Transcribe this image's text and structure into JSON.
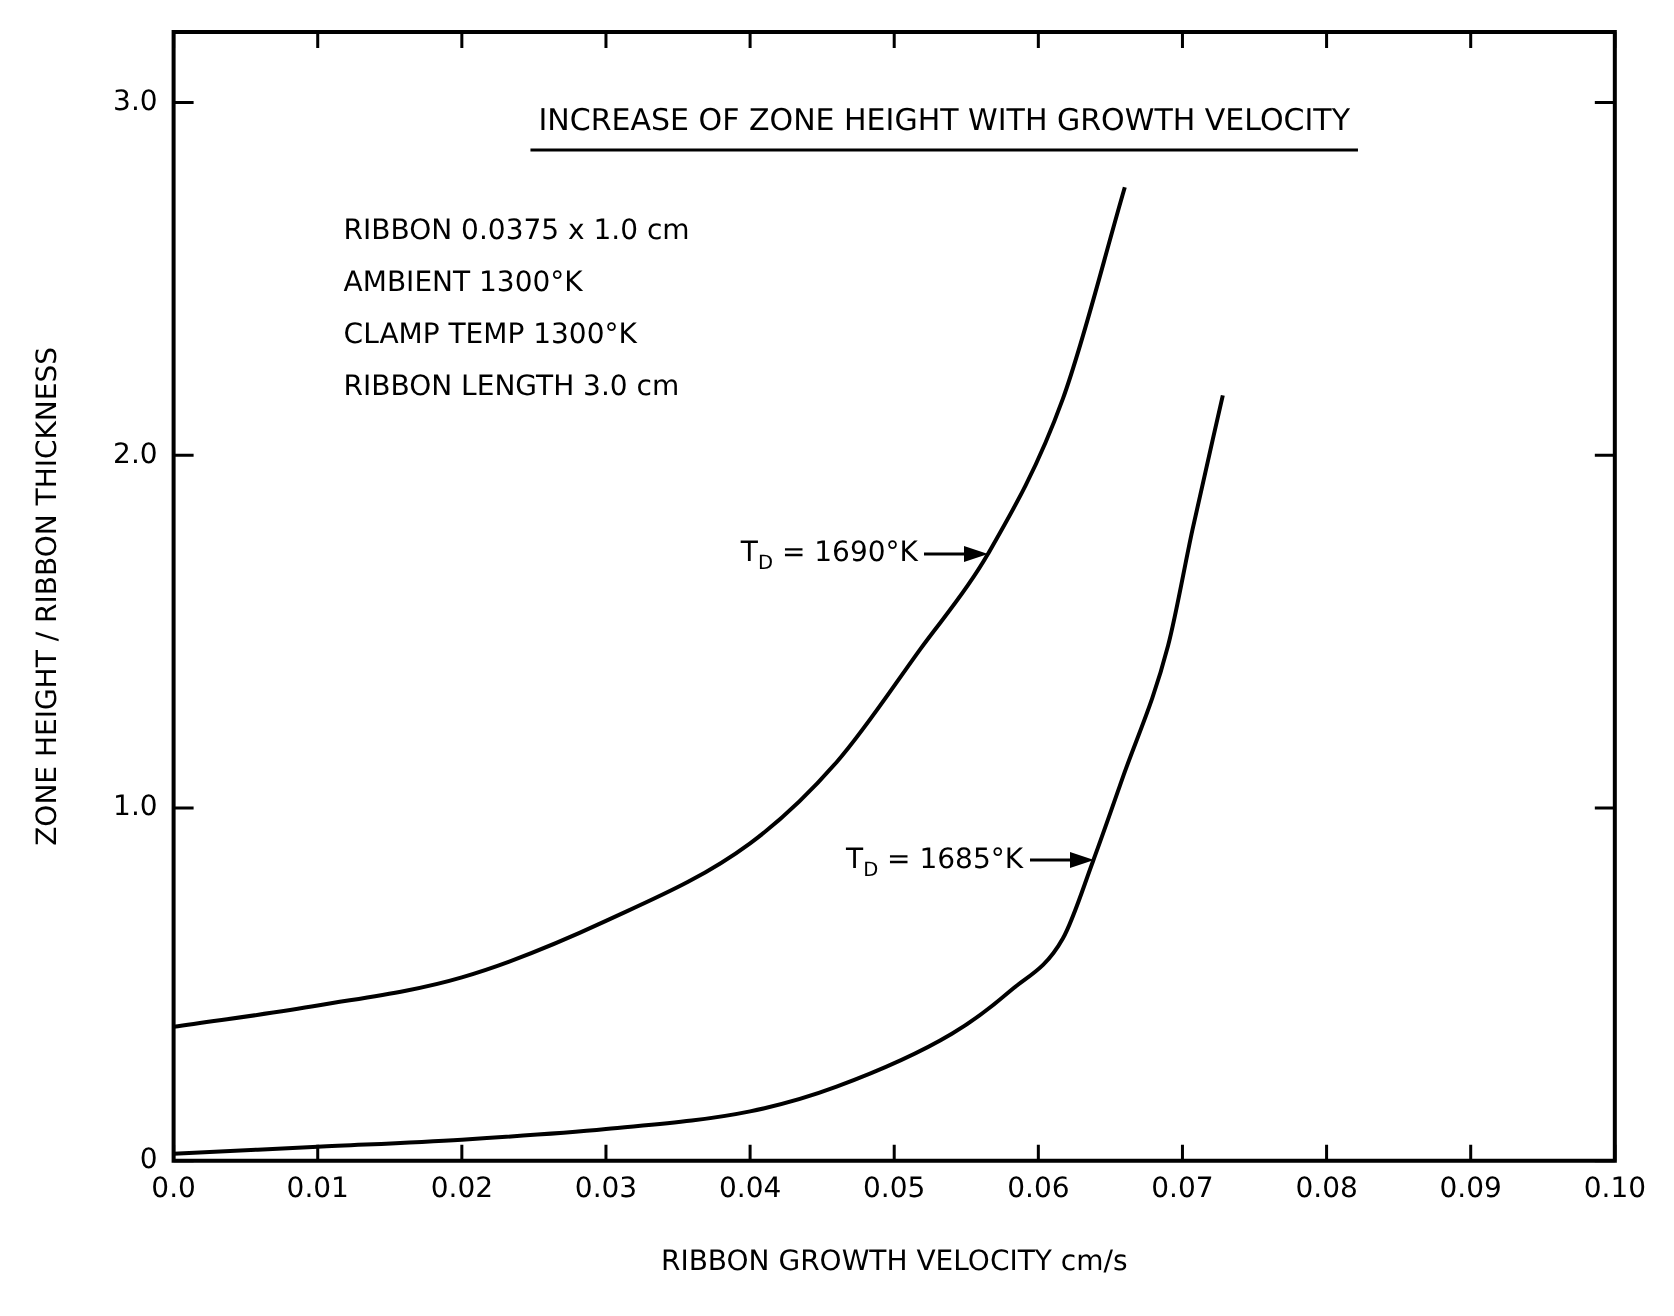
{
  "chart_data": {
    "type": "line",
    "title": "INCREASE OF ZONE HEIGHT WITH GROWTH VELOCITY",
    "xlabel": "RIBBON GROWTH VELOCITY cm/s",
    "ylabel": "ZONE HEIGHT / RIBBON THICKNESS",
    "xlim": [
      0,
      0.1
    ],
    "ylim": [
      0,
      3.2
    ],
    "xticks": [
      {
        "value": 0,
        "label": "0.0"
      },
      0.01,
      0.02,
      0.03,
      0.04,
      0.05,
      0.06,
      0.07,
      0.08,
      0.09,
      {
        "value": 0.1,
        "label": "0.10"
      }
    ],
    "yticks": [
      0,
      {
        "value": 1,
        "label": "1.0"
      },
      {
        "value": 2,
        "label": "2.0"
      },
      {
        "value": 3,
        "label": "3.0"
      }
    ],
    "marker": "none",
    "line_style": "solid",
    "series": [
      {
        "color": "#000000",
        "x": [
          0,
          0.01,
          0.02,
          0.03,
          0.04,
          0.046,
          0.0518,
          0.0565,
          0.0617,
          0.066
        ],
        "values": [
          0.38,
          0.44,
          0.52,
          0.68,
          0.9,
          1.13,
          1.45,
          1.72,
          2.16,
          2.76
        ]
      },
      {
        "color": "#000000",
        "x": [
          0,
          0.01,
          0.02,
          0.03,
          0.04,
          0.046,
          0.054,
          0.058,
          0.0617,
          0.0638,
          0.0658,
          0.069,
          0.0707,
          0.0728
        ],
        "values": [
          0.02,
          0.04,
          0.06,
          0.09,
          0.14,
          0.21,
          0.36,
          0.48,
          0.63,
          0.85,
          1.08,
          1.46,
          1.79,
          2.17
        ]
      }
    ],
    "annotations": [
      "RIBBON 0.0375 x 1.0 cm",
      "AMBIENT 1300°K",
      "CLAMP TEMP 1300°K",
      "RIBBON LENGTH 3.0 cm",
      {
        "text": "T$_{D}$ = 1690°K",
        "x": 0.0565,
        "y": 1.72
      },
      {
        "text": "T$_{D}$ = 1685°K",
        "x": 0.0638,
        "y": 0.85
      }
    ]
  }
}
